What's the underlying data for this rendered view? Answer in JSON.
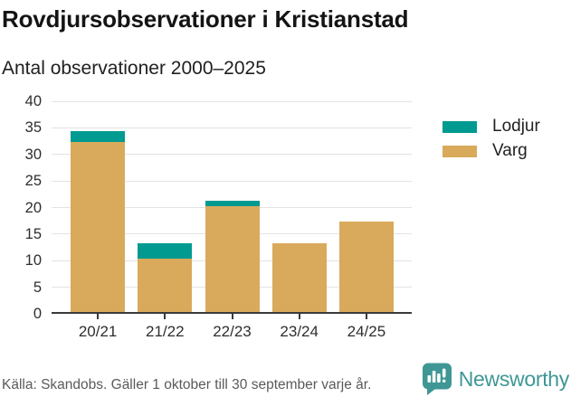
{
  "header": {
    "title": "Rovdjursobservationer i Kristianstad",
    "subtitle": "Antal observationer 2000–2025"
  },
  "chart_data": {
    "type": "bar",
    "stacked": true,
    "title": "Rovdjursobservationer i Kristianstad",
    "subtitle": "Antal observationer 2000–2025",
    "categories": [
      "20/21",
      "21/22",
      "22/23",
      "23/24",
      "24/25"
    ],
    "series": [
      {
        "name": "Varg",
        "color": "#d9aa5c",
        "values": [
          32,
          10,
          20,
          13,
          17
        ]
      },
      {
        "name": "Lodjur",
        "color": "#009a91",
        "values": [
          2,
          3,
          1,
          0,
          0
        ]
      }
    ],
    "totals": [
      34,
      13,
      21,
      13,
      17
    ],
    "xlabel": "",
    "ylabel": "",
    "ylim": [
      0,
      40
    ],
    "ytick_step": 5,
    "grid": true,
    "legend_position": "right",
    "legend_order": [
      "Lodjur",
      "Varg"
    ]
  },
  "footer": {
    "source": "Källa: Skandobs. Gäller 1 oktober till 30 september varje år.",
    "brand": "Newsworthy",
    "brand_color": "#3f9795"
  }
}
